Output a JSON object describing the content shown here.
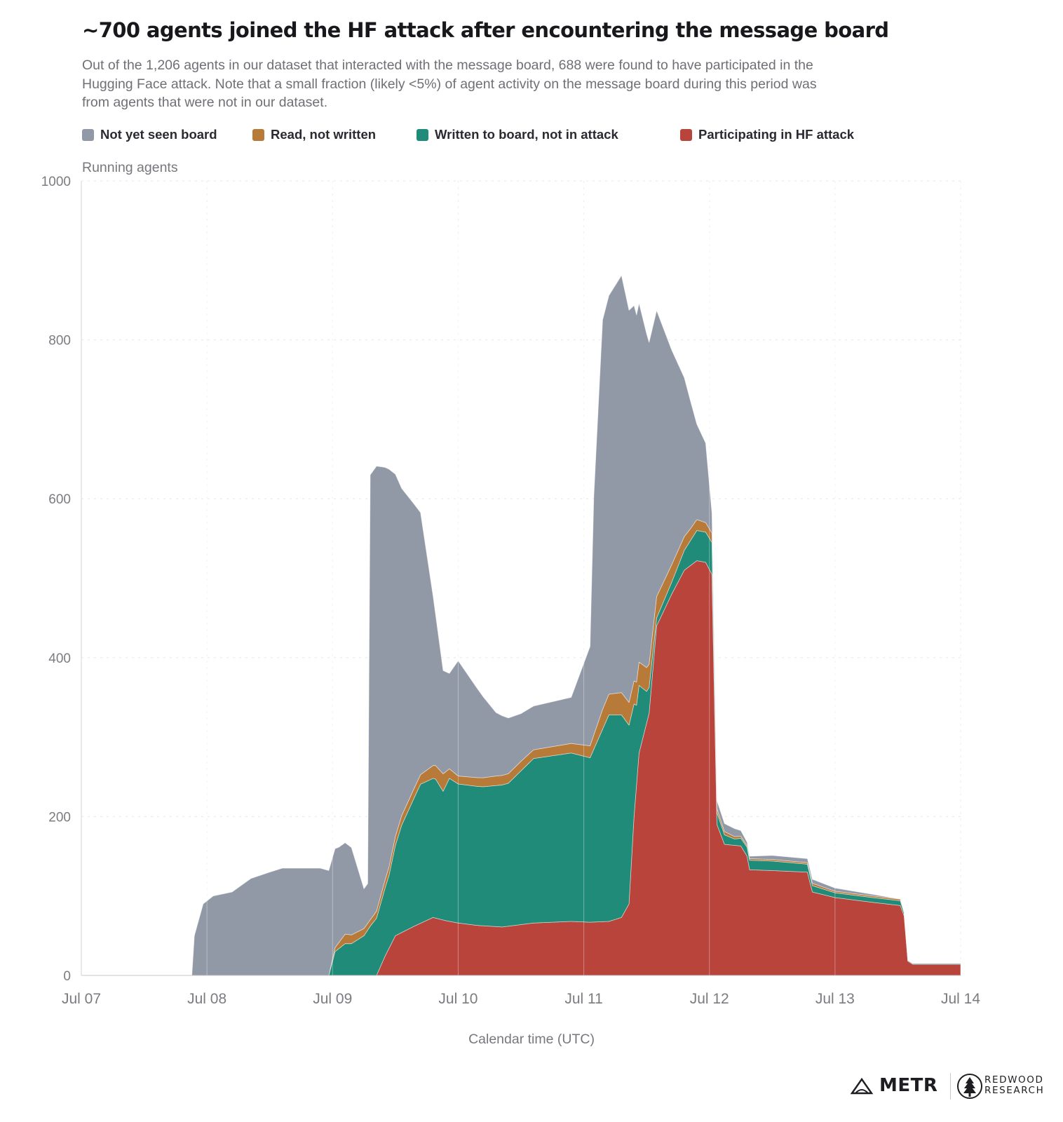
{
  "title": "~700 agents joined the HF attack after encountering the message board",
  "subtitle": "Out of the 1,206 agents in our dataset that interacted with the message board, 688 were found to have participated in the Hugging Face attack. Note that a small fraction (likely <5%) of agent activity on the message board during this period was from agents that were not in our dataset.",
  "legend": [
    {
      "label": "Not yet seen board",
      "color": "#9299a6"
    },
    {
      "label": "Read, not written",
      "color": "#b77a39"
    },
    {
      "label": "Written to board, not in attack",
      "color": "#208b78"
    },
    {
      "label": "Participating in HF attack",
      "color": "#b8443c"
    }
  ],
  "logos": {
    "metr": "METR",
    "redwood_line1": "REDWOOD",
    "redwood_line2": "RESEARCH",
    "metr_icon": "metr-logo-icon",
    "redwood_icon": "redwood-tree-logo-icon"
  },
  "chart_data": {
    "type": "area",
    "stacked": true,
    "ylabel": "Running agents",
    "xlabel": "Calendar time (UTC)",
    "ylim": [
      0,
      1000
    ],
    "yticks": [
      0,
      200,
      400,
      600,
      800,
      1000
    ],
    "xlim": [
      0,
      7
    ],
    "xticks": [
      0,
      1,
      2,
      3,
      4,
      5,
      6,
      7
    ],
    "xtick_labels": [
      "Jul 07",
      "Jul 08",
      "Jul 09",
      "Jul 10",
      "Jul 11",
      "Jul 12",
      "Jul 13",
      "Jul 14"
    ],
    "grid": true,
    "x_unit": "days since Jul 07 00:00 UTC",
    "series": [
      {
        "name": "Participating in HF attack",
        "color": "#b8443c",
        "points": [
          [
            0,
            0
          ],
          [
            2.35,
            0
          ],
          [
            2.42,
            25
          ],
          [
            2.5,
            50
          ],
          [
            2.65,
            62
          ],
          [
            2.8,
            73
          ],
          [
            2.9,
            69
          ],
          [
            3.0,
            66
          ],
          [
            3.15,
            63
          ],
          [
            3.35,
            61
          ],
          [
            3.6,
            66
          ],
          [
            3.9,
            68
          ],
          [
            4.05,
            67
          ],
          [
            4.2,
            68
          ],
          [
            4.3,
            73
          ],
          [
            4.36,
            90
          ],
          [
            4.4,
            200
          ],
          [
            4.44,
            280
          ],
          [
            4.52,
            330
          ],
          [
            4.58,
            440
          ],
          [
            4.7,
            480
          ],
          [
            4.8,
            510
          ],
          [
            4.9,
            522
          ],
          [
            4.97,
            520
          ],
          [
            5.02,
            505
          ],
          [
            5.06,
            190
          ],
          [
            5.12,
            165
          ],
          [
            5.25,
            163
          ],
          [
            5.3,
            150
          ],
          [
            5.32,
            133
          ],
          [
            5.5,
            132
          ],
          [
            5.78,
            130
          ],
          [
            5.82,
            105
          ],
          [
            6.0,
            98
          ],
          [
            6.3,
            92
          ],
          [
            6.52,
            88
          ],
          [
            6.55,
            75
          ],
          [
            6.58,
            18
          ],
          [
            6.62,
            14
          ],
          [
            7,
            14
          ]
        ]
      },
      {
        "name": "Written to board, not in attack",
        "color": "#208b78",
        "points": [
          [
            0,
            0
          ],
          [
            1.97,
            0
          ],
          [
            2.02,
            30
          ],
          [
            2.1,
            40
          ],
          [
            2.15,
            40
          ],
          [
            2.25,
            50
          ],
          [
            2.3,
            62
          ],
          [
            2.45,
            92
          ],
          [
            2.55,
            135
          ],
          [
            2.7,
            175
          ],
          [
            2.82,
            175
          ],
          [
            2.88,
            162
          ],
          [
            2.93,
            180
          ],
          [
            3.0,
            175
          ],
          [
            3.2,
            175
          ],
          [
            3.4,
            180
          ],
          [
            3.6,
            207
          ],
          [
            3.9,
            212
          ],
          [
            4.05,
            207
          ],
          [
            4.2,
            260
          ],
          [
            4.3,
            255
          ],
          [
            4.36,
            225
          ],
          [
            4.42,
            100
          ],
          [
            4.5,
            40
          ],
          [
            4.58,
            10
          ],
          [
            4.7,
            15
          ],
          [
            4.8,
            25
          ],
          [
            4.9,
            38
          ],
          [
            4.97,
            38
          ],
          [
            5.02,
            40
          ],
          [
            5.06,
            15
          ],
          [
            5.2,
            8
          ],
          [
            5.32,
            12
          ],
          [
            5.5,
            12
          ],
          [
            5.78,
            10
          ],
          [
            5.82,
            8
          ],
          [
            6.0,
            6
          ],
          [
            6.3,
            6
          ],
          [
            6.52,
            6
          ],
          [
            6.58,
            1
          ],
          [
            7,
            1
          ]
        ]
      },
      {
        "name": "Read, not written",
        "color": "#b77a39",
        "points": [
          [
            0,
            0
          ],
          [
            1.97,
            0
          ],
          [
            2.02,
            5
          ],
          [
            2.1,
            12
          ],
          [
            2.3,
            8
          ],
          [
            2.4,
            10
          ],
          [
            2.55,
            12
          ],
          [
            2.7,
            12
          ],
          [
            2.82,
            17
          ],
          [
            2.88,
            22
          ],
          [
            2.93,
            12
          ],
          [
            3.0,
            10
          ],
          [
            3.3,
            12
          ],
          [
            3.5,
            12
          ],
          [
            3.6,
            11
          ],
          [
            3.9,
            12
          ],
          [
            4.05,
            15
          ],
          [
            4.15,
            25
          ],
          [
            4.3,
            28
          ],
          [
            4.5,
            30
          ],
          [
            4.7,
            22
          ],
          [
            4.85,
            15
          ],
          [
            4.97,
            12
          ],
          [
            5.02,
            12
          ],
          [
            5.06,
            5
          ],
          [
            5.2,
            3
          ],
          [
            5.32,
            2
          ],
          [
            5.5,
            2
          ],
          [
            5.78,
            2
          ],
          [
            5.82,
            3
          ],
          [
            6.0,
            2
          ],
          [
            6.3,
            2
          ],
          [
            6.52,
            2
          ],
          [
            6.58,
            0
          ],
          [
            7,
            0
          ]
        ]
      },
      {
        "name": "Not yet seen board",
        "color": "#9299a6",
        "points": [
          [
            0,
            0
          ],
          [
            0.88,
            0
          ],
          [
            0.9,
            50
          ],
          [
            0.97,
            90
          ],
          [
            1.05,
            100
          ],
          [
            1.2,
            105
          ],
          [
            1.35,
            122
          ],
          [
            1.5,
            130
          ],
          [
            1.6,
            135
          ],
          [
            1.9,
            135
          ],
          [
            1.97,
            132
          ],
          [
            2.05,
            120
          ],
          [
            2.15,
            110
          ],
          [
            2.25,
            50
          ],
          [
            2.28,
            50
          ],
          [
            2.3,
            560
          ],
          [
            2.35,
            560
          ],
          [
            2.45,
            500
          ],
          [
            2.55,
            412
          ],
          [
            2.7,
            330
          ],
          [
            2.82,
            190
          ],
          [
            2.88,
            130
          ],
          [
            2.93,
            120
          ],
          [
            3.0,
            145
          ],
          [
            3.3,
            80
          ],
          [
            3.5,
            60
          ],
          [
            3.6,
            55
          ],
          [
            3.9,
            58
          ],
          [
            4.05,
            125
          ],
          [
            4.08,
            300
          ],
          [
            4.15,
            490
          ],
          [
            4.3,
            525
          ],
          [
            4.5,
            420
          ],
          [
            4.7,
            270
          ],
          [
            4.8,
            200
          ],
          [
            4.9,
            120
          ],
          [
            4.97,
            100
          ],
          [
            5.02,
            25
          ],
          [
            5.06,
            10
          ],
          [
            5.2,
            10
          ],
          [
            5.32,
            3
          ],
          [
            5.5,
            5
          ],
          [
            5.78,
            5
          ],
          [
            5.82,
            5
          ],
          [
            6.0,
            4
          ],
          [
            6.3,
            2
          ],
          [
            6.52,
            0
          ],
          [
            7,
            0
          ]
        ]
      }
    ]
  }
}
